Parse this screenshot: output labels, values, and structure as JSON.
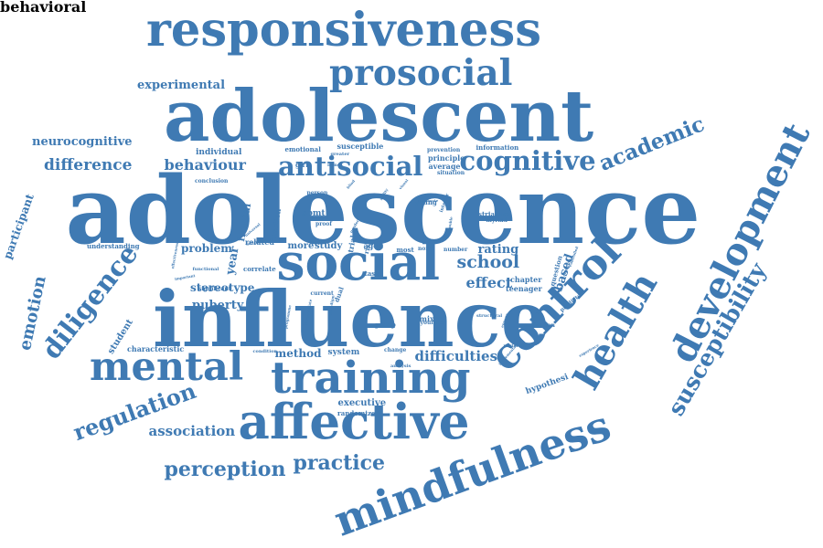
{
  "cloud": {
    "color": "#3f7ab3",
    "words": [
      "adolescence",
      "influence",
      "adolescent",
      "responsiveness",
      "mindfulness",
      "development",
      "training",
      "affective",
      "control",
      "social",
      "prosocial",
      "mental",
      "health",
      "regulation",
      "antisocial",
      "cognitive",
      "susceptibility",
      "participant",
      "diligence",
      "emotion",
      "academic",
      "practice",
      "perception",
      "difficulties",
      "hypothesi",
      "school",
      "student",
      "based",
      "effect",
      "behaviour",
      "difference",
      "neurocognitive",
      "experimental",
      "association",
      "puberty",
      "stereotype",
      "problem",
      "frontal",
      "year",
      "function",
      "method",
      "system",
      "executive",
      "randomized",
      "rating",
      "related",
      "correlate",
      "study",
      "more",
      "sbmt",
      "trial",
      "risk",
      "aged",
      "striatum",
      "myriad",
      "interior",
      "young",
      "question",
      "predictor",
      "chapter",
      "teenager",
      "characteristic",
      "understanding",
      "group",
      "mixed",
      "individual",
      "emotional",
      "susceptible",
      "prevention",
      "principle",
      "average",
      "situation",
      "information",
      "engage",
      "activation",
      "experience",
      "implementation",
      "registration",
      "younger",
      "current",
      "paradigm",
      "task",
      "most",
      "norm",
      "number",
      "condition",
      "change",
      "fictitious",
      "universal",
      "significant",
      "important",
      "functional",
      "effectiveness",
      "conclusion",
      "dual",
      "intermediate",
      "programme",
      "structural",
      "direction",
      "controlled",
      "double",
      "proof",
      "person",
      "girl",
      "gender",
      "ability",
      "classmate",
      "greater",
      "blind",
      "mind",
      "visual",
      "analysis",
      "behavioral"
    ]
  }
}
